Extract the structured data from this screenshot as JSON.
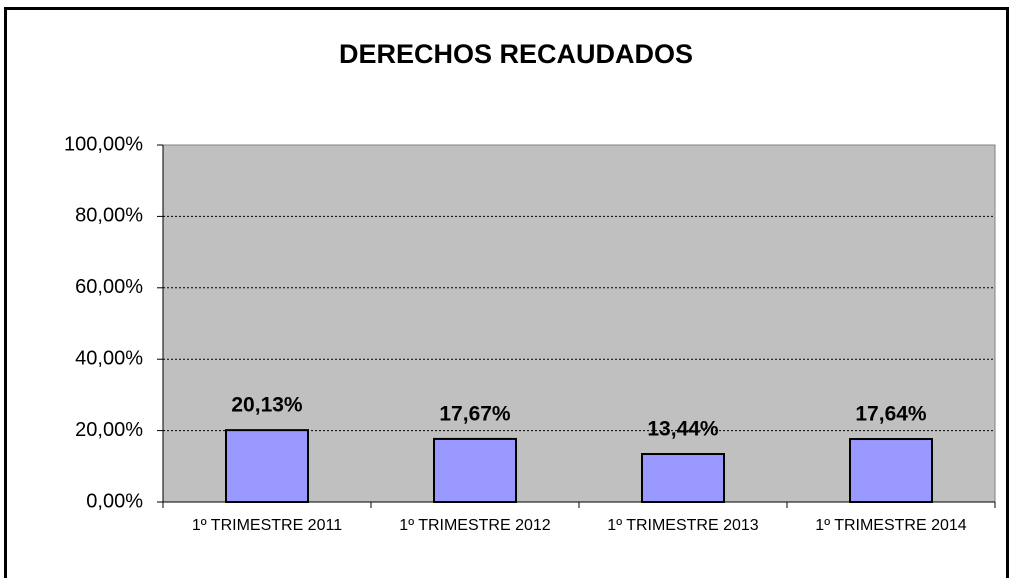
{
  "chart_data": {
    "type": "bar",
    "title": "DERECHOS RECAUDADOS",
    "categories": [
      "1º TRIMESTRE 2011",
      "1º TRIMESTRE 2012",
      "1º TRIMESTRE 2013",
      "1º TRIMESTRE 2014"
    ],
    "values": [
      20.13,
      17.67,
      13.44,
      17.64
    ],
    "value_labels": [
      "20,13%",
      "17,67%",
      "13,44%",
      "17,64%"
    ],
    "color": "#9999ff",
    "ylim": [
      0,
      100
    ],
    "yticks": [
      {
        "value": 0,
        "label": "0,00%"
      },
      {
        "value": 20,
        "label": "20,00%"
      },
      {
        "value": 40,
        "label": "40,00%"
      },
      {
        "value": 60,
        "label": "60,00%"
      },
      {
        "value": 80,
        "label": "80,00%"
      },
      {
        "value": 100,
        "label": "100,00%"
      }
    ],
    "grid": true
  }
}
